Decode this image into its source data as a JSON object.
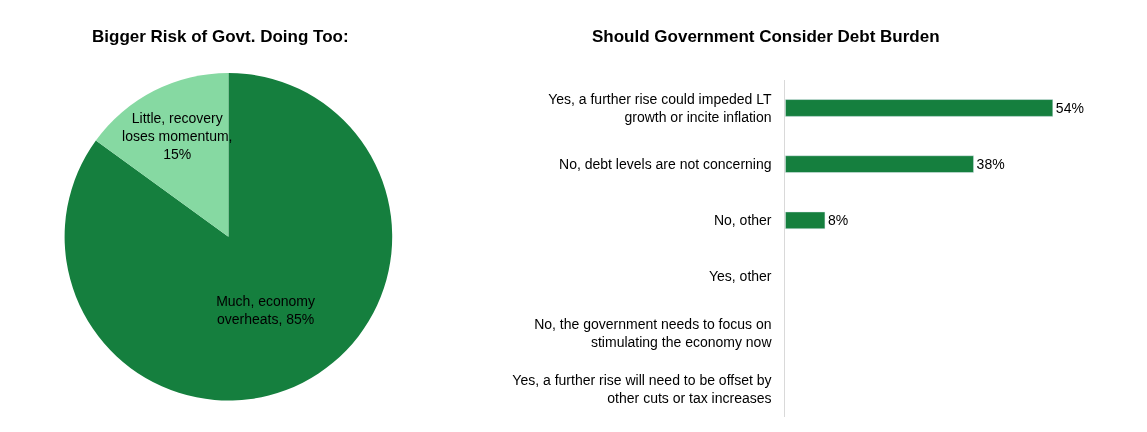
{
  "chart_data": [
    {
      "type": "pie",
      "title": "Bigger Risk of Govt. Doing Too:",
      "categories": [
        "Much, economy\noverheats, 85%",
        "Little, recovery\nloses momentum,\n15%"
      ],
      "values": [
        85,
        15
      ],
      "colors": [
        "#157f3e",
        "#86d9a2"
      ]
    },
    {
      "type": "bar",
      "orientation": "horizontal",
      "title": "Should Government Consider Debt Burden",
      "categories": [
        "Yes, a further rise could impeded LT\ngrowth or incite inflation",
        "No, debt levels are not concerning",
        "No, other",
        "Yes, other",
        "No, the government needs to focus on\nstimulating the economy now",
        "Yes, a further rise will need to be offset by\nother cuts or tax increases"
      ],
      "values": [
        54,
        38,
        8,
        null,
        null,
        null
      ],
      "value_labels": [
        "54%",
        "38%",
        "8%",
        null,
        null,
        null
      ],
      "color": "#157f3e"
    }
  ]
}
